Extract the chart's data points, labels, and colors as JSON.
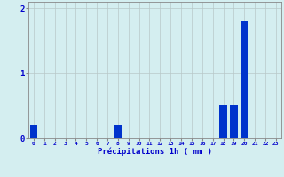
{
  "hours": [
    0,
    1,
    2,
    3,
    4,
    5,
    6,
    7,
    8,
    9,
    10,
    11,
    12,
    13,
    14,
    15,
    16,
    17,
    18,
    19,
    20,
    21,
    22,
    23
  ],
  "values": [
    0.2,
    0.0,
    0.0,
    0.0,
    0.0,
    0.0,
    0.0,
    0.0,
    0.2,
    0.0,
    0.0,
    0.0,
    0.0,
    0.0,
    0.0,
    0.0,
    0.0,
    0.0,
    0.5,
    0.5,
    1.8,
    0.0,
    0.0,
    0.0
  ],
  "bar_color": "#0033cc",
  "background_color": "#d4eef0",
  "grid_color": "#b8c8c8",
  "axis_color": "#888888",
  "xlabel": "Précipitations 1h ( mm )",
  "tick_color": "#0000cc",
  "ylim": [
    0,
    2.1
  ],
  "yticks": [
    0,
    1,
    2
  ],
  "figsize": [
    3.2,
    2.0
  ],
  "dpi": 100
}
